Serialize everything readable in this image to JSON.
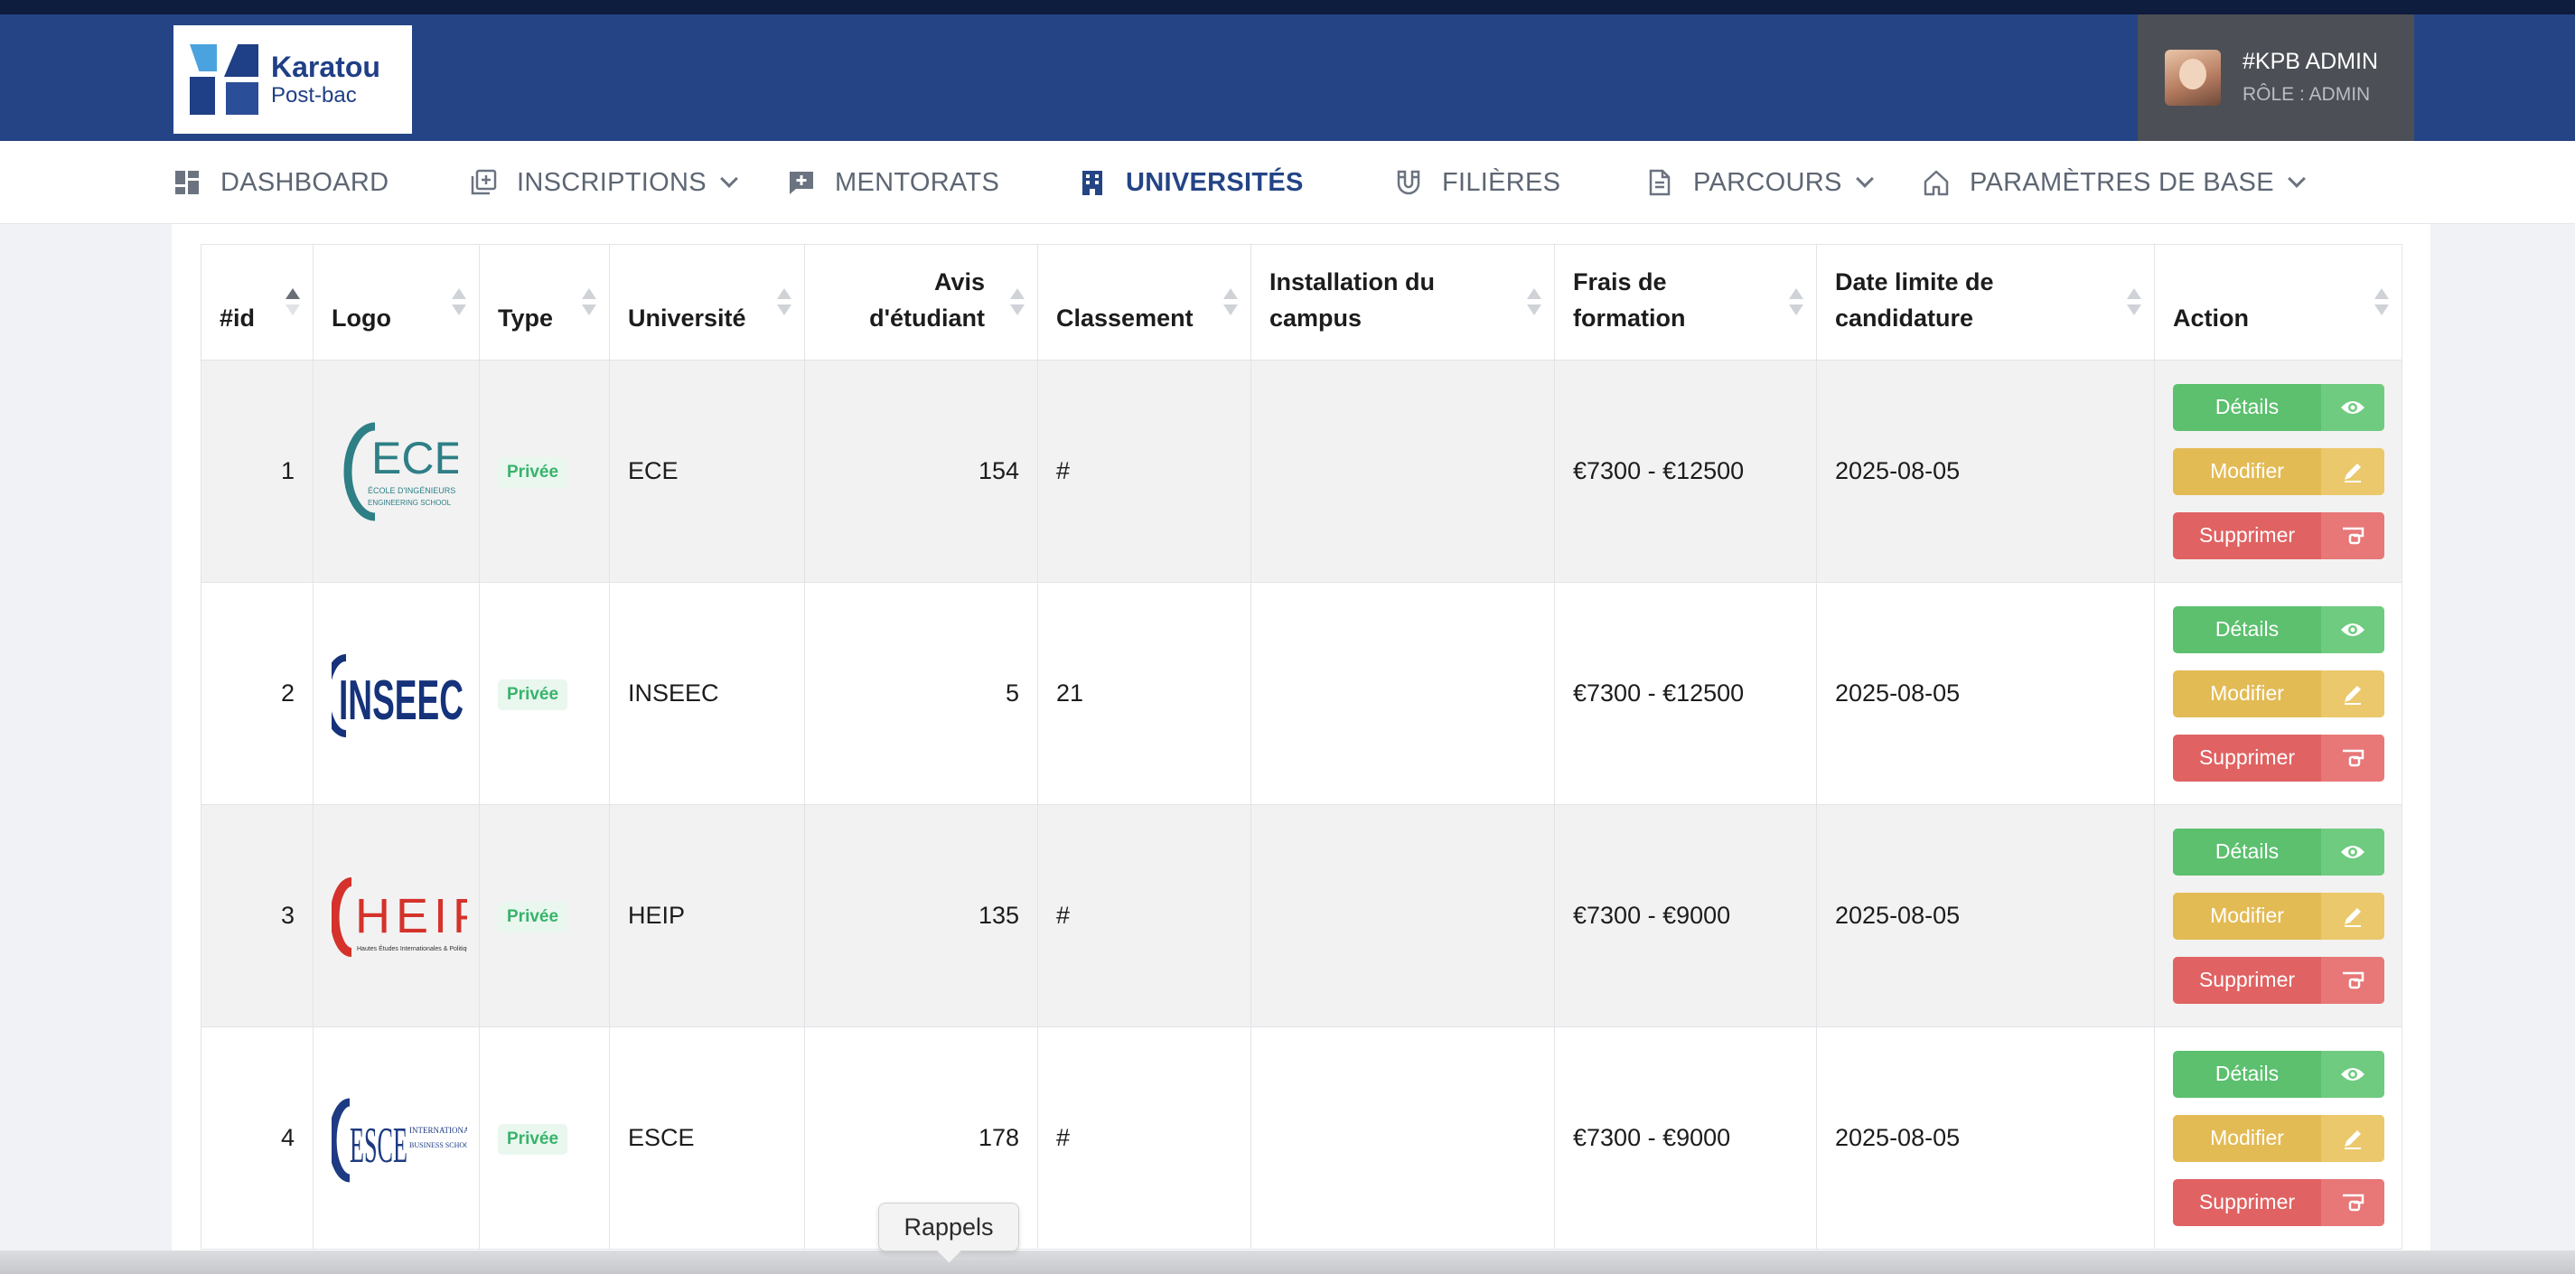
{
  "brand": {
    "name": "Karatou",
    "sub": "Post-bac"
  },
  "user": {
    "name": "#KPB ADMIN",
    "role": "RÔLE : ADMIN"
  },
  "nav": {
    "dashboard": "DASHBOARD",
    "inscriptions": "INSCRIPTIONS",
    "mentorats": "MENTORATS",
    "universites": "UNIVERSITÉS",
    "filieres": "FILIÈRES",
    "parcours": "PARCOURS",
    "parametres": "PARAMÈTRES DE BASE"
  },
  "table": {
    "headers": {
      "id": "#id",
      "logo": "Logo",
      "type": "Type",
      "universite": "Université",
      "avis1": "Avis",
      "avis2": "d'étudiant",
      "classement": "Classement",
      "installation1": "Installation du",
      "installation2": "campus",
      "frais1": "Frais de",
      "frais2": "formation",
      "date1": "Date limite de",
      "date2": "candidature",
      "action": "Action"
    },
    "rows": [
      {
        "id": "1",
        "logo": "ECE",
        "logo_sub": "ÉCOLE D'INGÉNIEURS",
        "logo_sub2": "ENGINEERING SCHOOL",
        "type": "Privée",
        "universite": "ECE",
        "avis": "154",
        "classement": "#",
        "installation": "",
        "frais": "€7300 - €12500",
        "date": "2025-08-05"
      },
      {
        "id": "2",
        "logo": "INSEEC",
        "type": "Privée",
        "universite": "INSEEC",
        "avis": "5",
        "classement": "21",
        "installation": "",
        "frais": "€7300 - €12500",
        "date": "2025-08-05"
      },
      {
        "id": "3",
        "logo": "HEIP",
        "logo_sub": "Hautes Études Internationales & Politiques",
        "type": "Privée",
        "universite": "HEIP",
        "avis": "135",
        "classement": "#",
        "installation": "",
        "frais": "€7300 - €9000",
        "date": "2025-08-05"
      },
      {
        "id": "4",
        "logo": "ESCE",
        "logo_sub": "INTERNATIONAL",
        "logo_sub2": "BUSINESS SCHOOL",
        "type": "Privée",
        "universite": "ESCE",
        "avis": "178",
        "classement": "#",
        "installation": "",
        "frais": "€7300 - €9000",
        "date": "2025-08-05"
      }
    ]
  },
  "buttons": {
    "details": "Détails",
    "modifier": "Modifier",
    "supprimer": "Supprimer"
  },
  "tooltip": "Rappels",
  "colors": {
    "header": "#244485",
    "green": "#5cc06e",
    "yellow": "#e3bb55",
    "red": "#e06262"
  }
}
